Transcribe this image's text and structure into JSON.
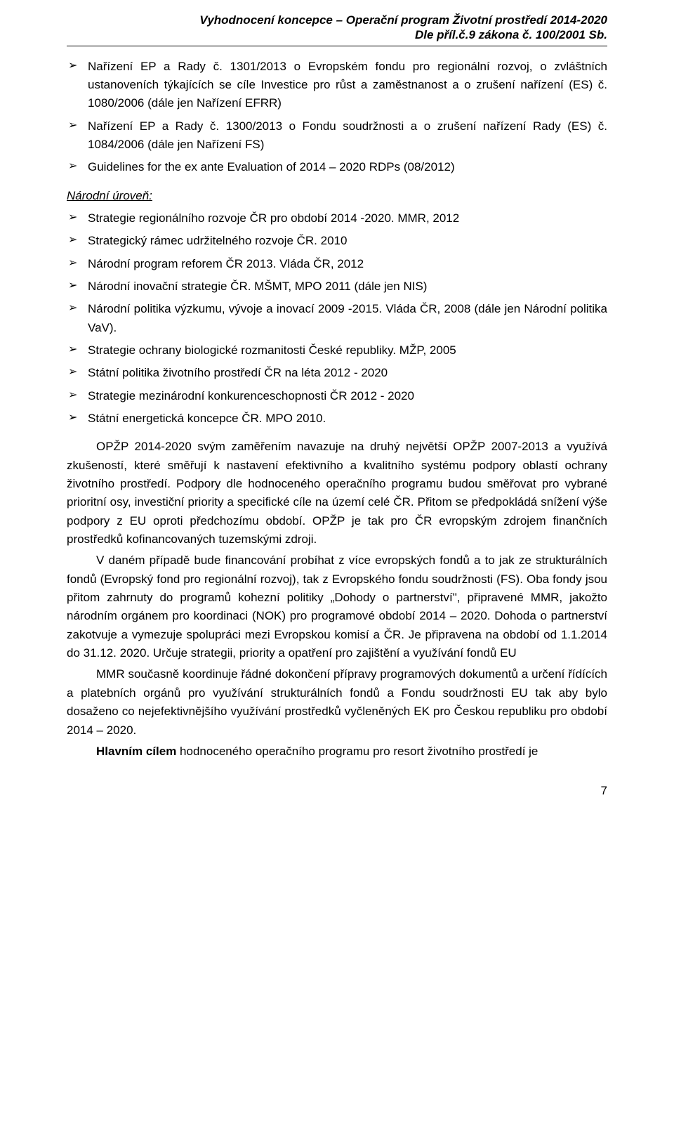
{
  "header": {
    "line1": "Vyhodnocení koncepce – Operační program Životní prostředí 2014-2020",
    "line2": "Dle příl.č.9 zákona č. 100/2001 Sb."
  },
  "top_bullets": [
    "Nařízení EP a Rady č. 1301/2013 o Evropském fondu pro regionální rozvoj, o zvláštních ustanoveních týkajících se cíle Investice pro růst a zaměstnanost a o zrušení nařízení (ES) č. 1080/2006  (dále jen Nařízení EFRR)",
    "Nařízení EP a Rady č. 1300/2013 o Fondu soudržnosti a o zrušení nařízení Rady (ES) č. 1084/2006 (dále jen Nařízení FS)",
    "Guidelines for the ex ante Evaluation of 2014 – 2020 RDPs (08/2012)"
  ],
  "section_label": "Národní úroveň:",
  "national_bullets": [
    "Strategie regionálního rozvoje ČR pro období 2014 -2020. MMR, 2012",
    "Strategický rámec udržitelného rozvoje ČR. 2010",
    "Národní program reforem ČR 2013. Vláda ČR, 2012",
    "Národní inovační strategie ČR. MŠMT, MPO 2011 (dále jen NIS)",
    "Národní politika výzkumu, vývoje a inovací 2009 -2015. Vláda ČR, 2008 (dále jen Národní politika VaV).",
    "Strategie ochrany biologické rozmanitosti České republiky. MŽP, 2005",
    "Státní politika životního prostředí  ČR na léta 2012 - 2020",
    "Strategie mezinárodní konkurenceschopnosti ČR 2012 - 2020",
    "Státní energetická koncepce ČR. MPO 2010."
  ],
  "paragraphs": [
    "OPŽP 2014-2020 svým zaměřením navazuje na druhý největší  OPŽP 2007-2013 a využívá zkušeností, které směřují k nastavení efektivního a kvalitního systému podpory oblastí ochrany životního prostředí. Podpory dle hodnoceného operačního programu budou směřovat pro vybrané  prioritní osy, investiční priority a specifické cíle na území  celé ČR. Přitom se předpokládá snížení výše podpory z EU oproti předchozímu období. OPŽP je tak pro ČR evropským zdrojem finančních prostředků kofinancovaných tuzemskými zdroji.",
    "V daném případě bude financování probíhat z více evropských fondů a to jak  ze strukturálních fondů (Evropský fond pro regionální rozvoj), tak z Evropského fondu soudržnosti (FS). Oba fondy jsou přitom zahrnuty do programů kohezní politiky „Dohody o partnerství\", připravené MMR, jakožto národním orgánem pro koordinaci (NOK) pro programové období 2014 – 2020. Dohoda o partnerství zakotvuje a vymezuje spolupráci mezi Evropskou komisí a ČR. Je připravena na období od 1.1.2014 do 31.12. 2020. Určuje strategii, priority a opatření pro zajištění a využívání fondů EU",
    "MMR současně koordinuje řádné dokončení přípravy programových dokumentů a určení řídících a platebních orgánů pro využívání strukturálních fondů a Fondu soudržnosti EU tak aby bylo  dosaženo co nejefektivnějšího využívání prostředků vyčleněných EK pro Českou republiku pro období 2014 – 2020."
  ],
  "final_line_bold": "Hlavním cílem",
  "final_line_rest": " hodnoceného operačního programu pro resort životního prostředí  je",
  "page_number": "7"
}
